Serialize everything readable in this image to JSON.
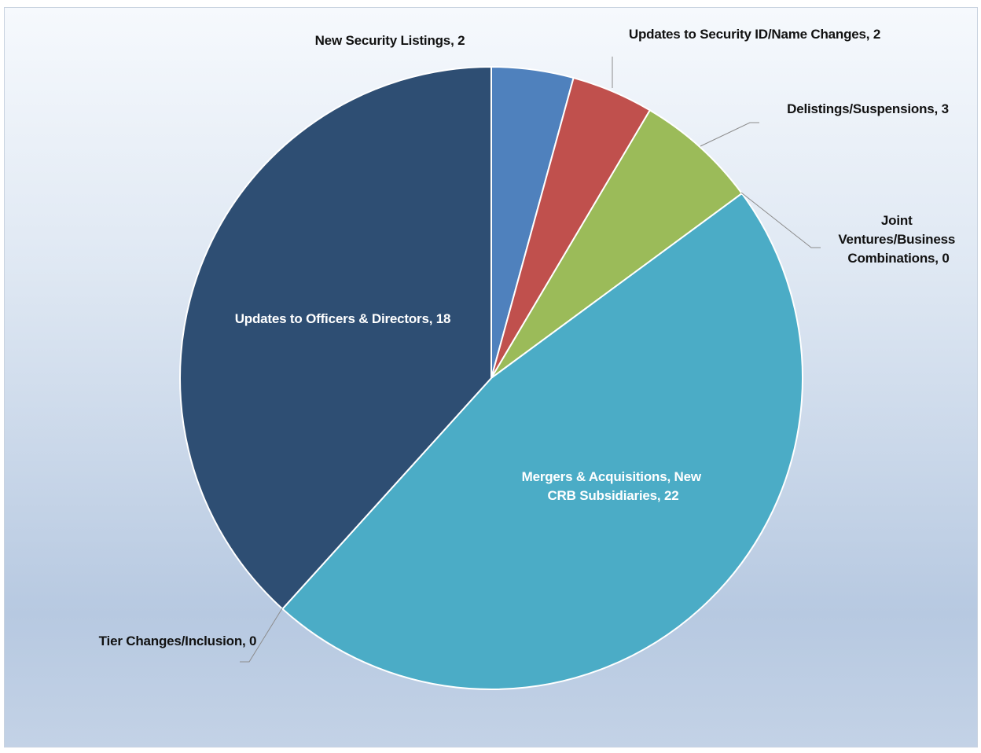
{
  "chart_data": {
    "type": "pie",
    "title": "",
    "slices": [
      {
        "label": "New Security Listings",
        "value": 2,
        "color": "#4f81bd",
        "label_text": "New Security Listings, 2"
      },
      {
        "label": "Updates to Security ID/Name Changes",
        "value": 2,
        "color": "#c0504d",
        "label_text": "Updates to Security ID/Name Changes, 2"
      },
      {
        "label": "Delistings/Suspensions",
        "value": 3,
        "color": "#9bbb59",
        "label_text": "Delistings/Suspensions, 3"
      },
      {
        "label": "Joint Ventures/Business Combinations",
        "value": 0,
        "color": "#8064a2",
        "label_text": "Joint Ventures/Business Combinations, 0",
        "label_lines": [
          "Joint",
          "Ventures/Business",
          "Combinations, 0"
        ]
      },
      {
        "label": "Mergers & Acquisitions, New CRB Subsidiaries",
        "value": 22,
        "color": "#4bacc6",
        "label_text": "Mergers & Acquisitions, New CRB Subsidiaries, 22",
        "label_lines": [
          "Mergers & Acquisitions, New",
          "CRB Subsidiaries, 22"
        ]
      },
      {
        "label": "Tier Changes/Inclusion",
        "value": 0,
        "color": "#f79646",
        "label_text": "Tier Changes/Inclusion, 0"
      },
      {
        "label": "Updates to Officers & Directors",
        "value": 18,
        "color": "#2e4e73",
        "label_text": "Updates to Officers & Directors, 18"
      }
    ],
    "start_angle_deg": 0,
    "direction": "clockwise",
    "legend": "none"
  }
}
